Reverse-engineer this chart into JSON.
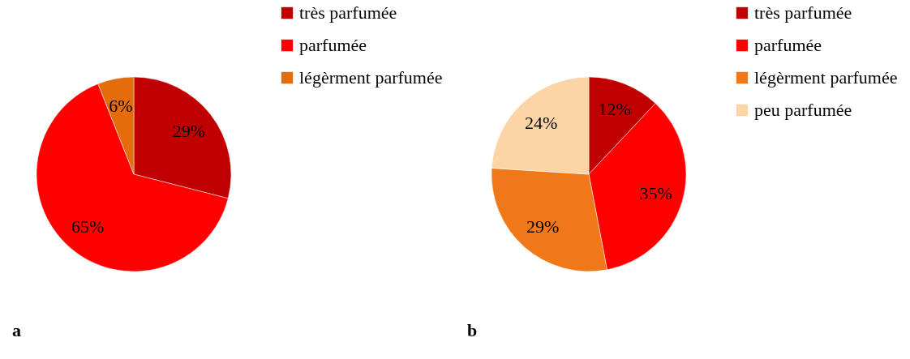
{
  "chart_data": [
    {
      "type": "pie",
      "categories": [
        "très parfumée",
        "parfumée",
        "légèrment parfumée"
      ],
      "values": [
        29,
        65,
        6
      ],
      "colors": [
        "#c00000",
        "#ff0000",
        "#e46c0a"
      ],
      "value_labels": [
        "29%",
        "65%",
        "6%"
      ],
      "legend": "right",
      "annotations": [
        "a"
      ]
    },
    {
      "type": "pie",
      "categories": [
        "très parfumée",
        "parfumée",
        "légèrment parfumée",
        "peu parfumée"
      ],
      "values": [
        12,
        35,
        29,
        24
      ],
      "colors": [
        "#c00000",
        "#ff0000",
        "#f07818",
        "#fbd5a6"
      ],
      "value_labels": [
        "12%",
        "35%",
        "29%",
        "24%"
      ],
      "legend": "right",
      "annotations": [
        "b"
      ]
    }
  ]
}
